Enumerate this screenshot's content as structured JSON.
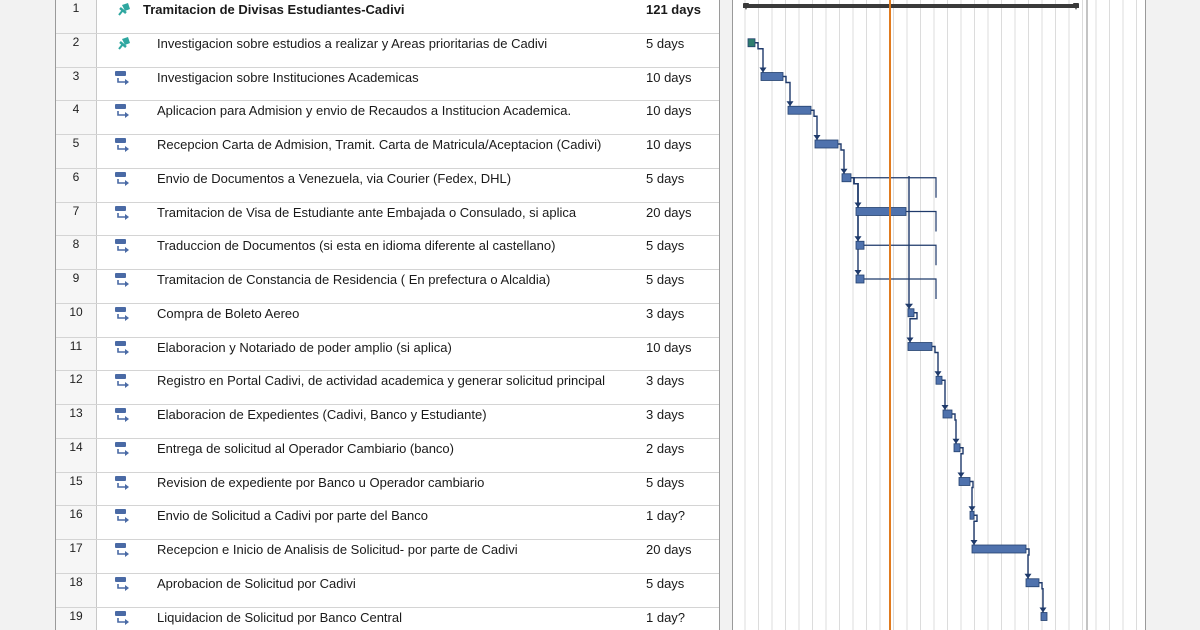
{
  "colors": {
    "summary_bar": "#3a3a3a",
    "task_bar": "#4f72ad",
    "milestone_bar": "#2e7d6e",
    "today_line": "#e07b1f",
    "link_line": "#1f3a6b",
    "pin_icon": "#2fa7a0",
    "auto_icon": "#4a6aa5"
  },
  "tasks": [
    {
      "id": "1",
      "name": "Tramitacion de Divisas Estudiantes-Cadivi",
      "duration": "121 days",
      "summary": true,
      "icon": "pin-icon"
    },
    {
      "id": "2",
      "name": "Investigacion sobre estudios a realizar y Areas prioritarias de Cadivi",
      "duration": "5 days",
      "summary": false,
      "icon": "pin-icon"
    },
    {
      "id": "3",
      "name": "Investigacion sobre Instituciones Academicas",
      "duration": "10 days",
      "summary": false,
      "icon": "auto-schedule-icon"
    },
    {
      "id": "4",
      "name": "Aplicacion para Admision y envio de Recaudos a Institucion Academica.",
      "duration": "10 days",
      "summary": false,
      "icon": "auto-schedule-icon"
    },
    {
      "id": "5",
      "name": "Recepcion Carta de Admision, Tramit. Carta de Matricula/Aceptacion (Cadivi)",
      "duration": "10 days",
      "summary": false,
      "icon": "auto-schedule-icon"
    },
    {
      "id": "6",
      "name": "Envio de Documentos  a Venezuela, via Courier  (Fedex, DHL)",
      "duration": "5 days",
      "summary": false,
      "icon": "auto-schedule-icon"
    },
    {
      "id": "7",
      "name": "Tramitacion de Visa de Estudiante ante Embajada o Consulado, si aplica",
      "duration": "20 days",
      "summary": false,
      "icon": "auto-schedule-icon"
    },
    {
      "id": "8",
      "name": "Traduccion de Documentos (si esta en idioma diferente al castellano)",
      "duration": "5 days",
      "summary": false,
      "icon": "auto-schedule-icon"
    },
    {
      "id": "9",
      "name": "Tramitacion de Constancia de Residencia ( En prefectura o Alcaldia)",
      "duration": "5 days",
      "summary": false,
      "icon": "auto-schedule-icon"
    },
    {
      "id": "10",
      "name": "Compra de Boleto Aereo",
      "duration": "3 days",
      "summary": false,
      "icon": "auto-schedule-icon"
    },
    {
      "id": "11",
      "name": "Elaboracion y Notariado de poder amplio (si aplica)",
      "duration": "10 days",
      "summary": false,
      "icon": "auto-schedule-icon"
    },
    {
      "id": "12",
      "name": "Registro en Portal Cadivi, de actividad academica y generar solicitud principal",
      "duration": "3 days",
      "summary": false,
      "icon": "auto-schedule-icon"
    },
    {
      "id": "13",
      "name": "Elaboracion de Expedientes (Cadivi, Banco y Estudiante)",
      "duration": "3 days",
      "summary": false,
      "icon": "auto-schedule-icon"
    },
    {
      "id": "14",
      "name": "Entrega de solicitud al Operador Cambiario (banco)",
      "duration": "2 days",
      "summary": false,
      "icon": "auto-schedule-icon"
    },
    {
      "id": "15",
      "name": "Revision de expediente por Banco u Operador cambiario",
      "duration": "5 days",
      "summary": false,
      "icon": "auto-schedule-icon"
    },
    {
      "id": "16",
      "name": "Envio de Solicitud a Cadivi por parte del Banco",
      "duration": "1 day?",
      "summary": false,
      "icon": "auto-schedule-icon"
    },
    {
      "id": "17",
      "name": "Recepcion e Inicio de Analisis de Solicitud- por parte de Cadivi",
      "duration": "20 days",
      "summary": false,
      "icon": "auto-schedule-icon"
    },
    {
      "id": "18",
      "name": "Aprobacion de Solicitud por Cadivi",
      "duration": "5 days",
      "summary": false,
      "icon": "auto-schedule-icon"
    },
    {
      "id": "19",
      "name": "Liquidacion de Solicitud por Banco Central",
      "duration": "1 day?",
      "summary": false,
      "icon": "auto-schedule-icon"
    }
  ]
}
